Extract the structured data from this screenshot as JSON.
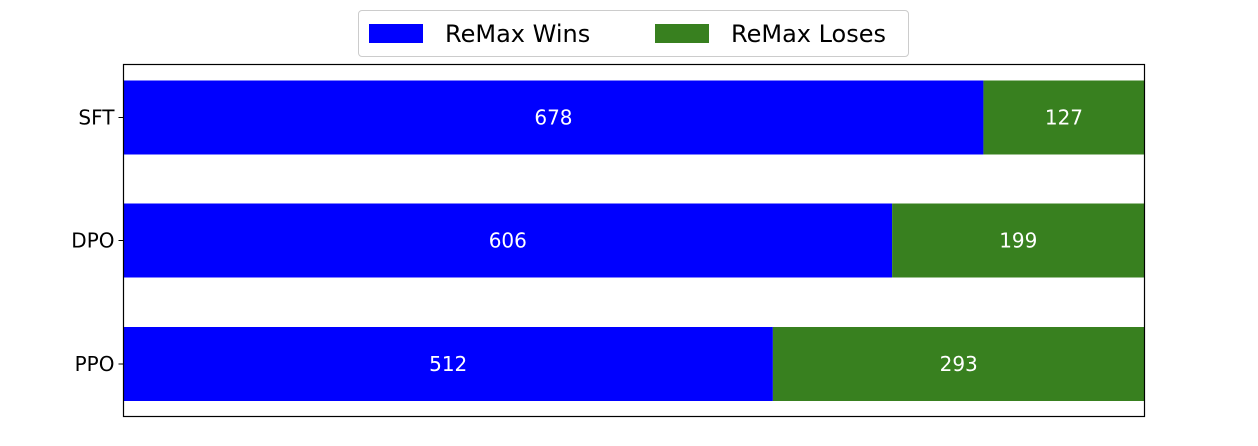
{
  "chart_data": {
    "type": "bar",
    "orientation": "horizontal",
    "stacked": true,
    "categories": [
      "SFT",
      "DPO",
      "PPO"
    ],
    "series": [
      {
        "name": "ReMax Wins",
        "values": [
          678,
          606,
          512
        ],
        "color": "#0000ff"
      },
      {
        "name": "ReMax Loses",
        "values": [
          127,
          199,
          293
        ],
        "color": "#38801f"
      }
    ],
    "xlim": [
      0,
      805
    ],
    "x_ticks_visible": false,
    "grid": false,
    "legend_position": "top-center",
    "label_color": "#ffffff"
  }
}
